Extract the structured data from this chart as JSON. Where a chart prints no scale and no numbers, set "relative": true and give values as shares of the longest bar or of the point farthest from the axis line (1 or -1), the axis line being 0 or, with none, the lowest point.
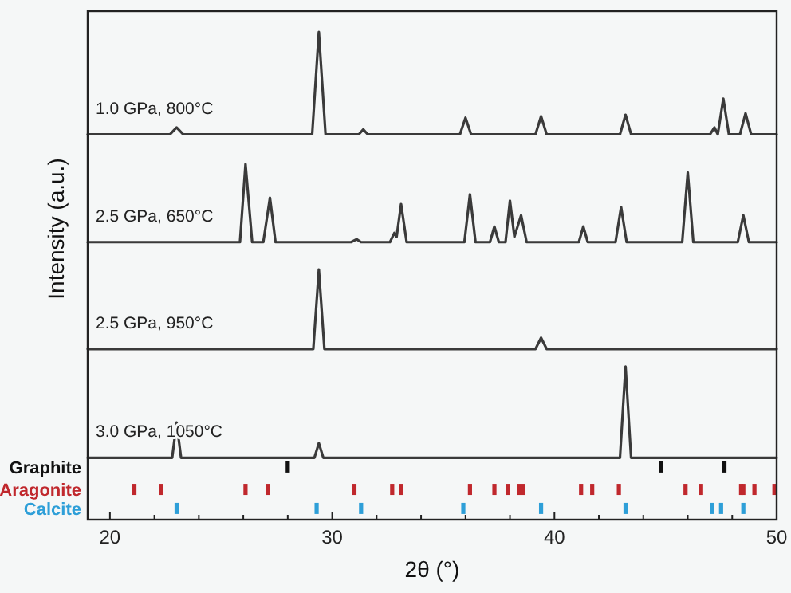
{
  "chart_data": {
    "type": "line",
    "relative": true,
    "xlabel": "2θ (°)",
    "ylabel": "Intensity (a.u.)",
    "xlim": [
      19,
      50
    ],
    "xticks": [
      20,
      {
        "value": 22,
        "label": null
      },
      {
        "value": 24,
        "label": null
      },
      {
        "value": 26,
        "label": null
      },
      {
        "value": 28,
        "label": null
      },
      30,
      {
        "value": 32,
        "label": null
      },
      {
        "value": 34,
        "label": null
      },
      {
        "value": 36,
        "label": null
      },
      {
        "value": 38,
        "label": null
      },
      40,
      {
        "value": 42,
        "label": null
      },
      {
        "value": 44,
        "label": null
      },
      {
        "value": 46,
        "label": null
      },
      {
        "value": 48,
        "label": null
      },
      50
    ],
    "grid": false,
    "series": [
      {
        "name": "1.0 GPa, 800°C",
        "color": "#3a3a3a",
        "x": [
          19,
          22.7,
          23.0,
          23.3,
          29.1,
          29.4,
          29.7,
          31.2,
          31.4,
          31.6,
          35.75,
          36.0,
          36.25,
          39.15,
          39.4,
          39.65,
          42.95,
          43.2,
          43.45,
          47.0,
          47.2,
          47.35,
          47.6,
          47.85,
          48.35,
          48.6,
          48.85,
          50
        ],
        "values": [
          0.79,
          0.79,
          0.804,
          0.79,
          0.79,
          1.0,
          0.79,
          0.79,
          0.8,
          0.79,
          0.79,
          0.824,
          0.79,
          0.79,
          0.827,
          0.79,
          0.79,
          0.83,
          0.79,
          0.79,
          0.804,
          0.79,
          0.863,
          0.79,
          0.79,
          0.833,
          0.79,
          0.79
        ]
      },
      {
        "name": "2.5 GPa, 650°C",
        "color": "#3a3a3a",
        "x": [
          19,
          25.85,
          26.1,
          26.4,
          26.9,
          27.2,
          27.45,
          30.85,
          31.1,
          31.3,
          32.6,
          32.8,
          32.9,
          33.1,
          33.35,
          35.95,
          36.2,
          36.45,
          37.1,
          37.3,
          37.5,
          37.8,
          38.0,
          38.2,
          38.5,
          38.75,
          41.1,
          41.3,
          41.5,
          42.75,
          43.0,
          43.25,
          45.75,
          46.0,
          46.25,
          48.25,
          48.5,
          48.75,
          50
        ],
        "values": [
          0.569,
          0.569,
          0.729,
          0.569,
          0.569,
          0.66,
          0.569,
          0.569,
          0.575,
          0.569,
          0.569,
          0.588,
          0.58,
          0.647,
          0.569,
          0.569,
          0.667,
          0.569,
          0.569,
          0.601,
          0.569,
          0.569,
          0.654,
          0.58,
          0.624,
          0.569,
          0.569,
          0.601,
          0.569,
          0.569,
          0.641,
          0.569,
          0.569,
          0.712,
          0.569,
          0.569,
          0.624,
          0.569,
          0.569
        ]
      },
      {
        "name": "2.5 GPa, 950°C",
        "color": "#3a3a3a",
        "x": [
          19,
          29.15,
          29.4,
          29.65,
          39.15,
          39.4,
          39.65,
          50
        ],
        "values": [
          0.35,
          0.35,
          0.513,
          0.35,
          0.35,
          0.373,
          0.35,
          0.35
        ]
      },
      {
        "name": "3.0 GPa, 1050°C",
        "color": "#3a3a3a",
        "x": [
          19,
          22.8,
          23.0,
          23.2,
          29.2,
          29.4,
          29.6,
          42.95,
          43.2,
          43.45,
          50
        ],
        "values": [
          0.127,
          0.127,
          0.199,
          0.127,
          0.127,
          0.157,
          0.127,
          0.127,
          0.314,
          0.127,
          0.127
        ]
      },
      {
        "name": "Graphite",
        "type": "scatter",
        "color": "#111111",
        "x": [
          28.0,
          44.8,
          47.65
        ],
        "values": [
          0.108,
          0.108,
          0.108
        ]
      },
      {
        "name": "Aragonite",
        "type": "scatter",
        "color": "#c0282d",
        "x": [
          21.1,
          22.3,
          26.1,
          27.1,
          31.0,
          32.7,
          33.1,
          36.2,
          37.3,
          37.9,
          38.4,
          38.6,
          41.2,
          41.7,
          42.9,
          45.9,
          46.6,
          48.4,
          48.5,
          49.0,
          49.9
        ],
        "values": [
          0.062,
          0.062,
          0.062,
          0.062,
          0.062,
          0.062,
          0.062,
          0.062,
          0.062,
          0.062,
          0.062,
          0.062,
          0.062,
          0.062,
          0.062,
          0.062,
          0.062,
          0.062,
          0.062,
          0.062,
          0.062
        ]
      },
      {
        "name": "Calcite",
        "type": "scatter",
        "color": "#2e9fd8",
        "x": [
          23.0,
          29.3,
          31.3,
          35.9,
          39.4,
          43.2,
          47.1,
          47.5,
          48.5
        ],
        "values": [
          0.023,
          0.023,
          0.023,
          0.023,
          0.023,
          0.023,
          0.023,
          0.023,
          0.023
        ]
      }
    ]
  }
}
